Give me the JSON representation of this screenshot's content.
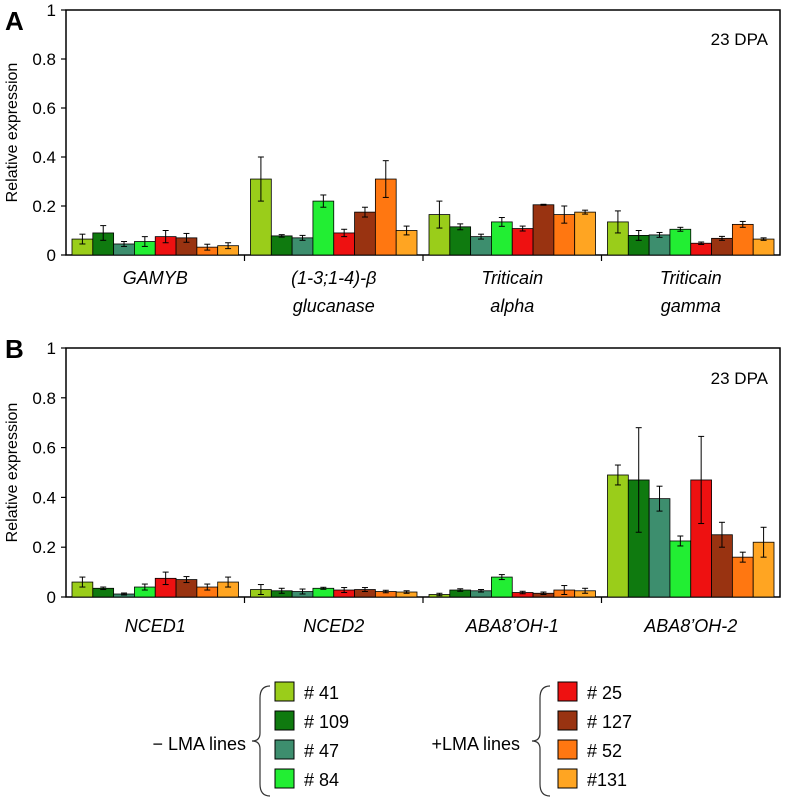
{
  "chart_data": [
    {
      "type": "bar",
      "panel": "A",
      "annotation": "23 DPA",
      "ylabel": "Relative expression",
      "ylim": [
        0,
        1
      ],
      "yticks": [
        "0",
        "0.2",
        "0.4",
        "0.6",
        "0.8",
        "1"
      ],
      "categories": [
        [
          "GAMYB"
        ],
        [
          "(1-3;1-4)-β",
          "glucanase"
        ],
        [
          "Triticain",
          "alpha"
        ],
        [
          "Triticain",
          "gamma"
        ]
      ],
      "series": [
        {
          "name": "# 41",
          "values": [
            0.065,
            0.31,
            0.165,
            0.135
          ],
          "errors": [
            0.02,
            0.09,
            0.055,
            0.045
          ]
        },
        {
          "name": "# 109",
          "values": [
            0.09,
            0.078,
            0.115,
            0.08
          ],
          "errors": [
            0.03,
            0.005,
            0.012,
            0.02
          ]
        },
        {
          "name": "# 47",
          "values": [
            0.045,
            0.07,
            0.075,
            0.082
          ],
          "errors": [
            0.01,
            0.01,
            0.01,
            0.01
          ]
        },
        {
          "name": "# 84",
          "values": [
            0.055,
            0.22,
            0.135,
            0.105
          ],
          "errors": [
            0.02,
            0.025,
            0.018,
            0.008
          ]
        },
        {
          "name": "# 25",
          "values": [
            0.075,
            0.09,
            0.108,
            0.048
          ],
          "errors": [
            0.025,
            0.015,
            0.01,
            0.005
          ]
        },
        {
          "name": "# 127",
          "values": [
            0.07,
            0.175,
            0.205,
            0.068
          ],
          "errors": [
            0.018,
            0.02,
            0.002,
            0.008
          ]
        },
        {
          "name": "# 52",
          "values": [
            0.032,
            0.31,
            0.165,
            0.125
          ],
          "errors": [
            0.012,
            0.075,
            0.035,
            0.012
          ]
        },
        {
          "name": "#131",
          "values": [
            0.038,
            0.1,
            0.175,
            0.065
          ],
          "errors": [
            0.012,
            0.018,
            0.008,
            0.005
          ]
        }
      ]
    },
    {
      "type": "bar",
      "panel": "B",
      "annotation": "23 DPA",
      "ylabel": "Relative expression",
      "ylim": [
        0,
        1
      ],
      "yticks": [
        "0",
        "0.2",
        "0.4",
        "0.6",
        "0.8",
        "1"
      ],
      "categories": [
        [
          "NCED1"
        ],
        [
          "NCED2"
        ],
        [
          "ABA8’OH-1"
        ],
        [
          "ABA8’OH-2"
        ]
      ],
      "series": [
        {
          "name": "# 41",
          "values": [
            0.06,
            0.03,
            0.01,
            0.49
          ],
          "errors": [
            0.02,
            0.02,
            0.005,
            0.04
          ]
        },
        {
          "name": "# 109",
          "values": [
            0.035,
            0.025,
            0.028,
            0.47
          ],
          "errors": [
            0.005,
            0.01,
            0.005,
            0.21
          ]
        },
        {
          "name": "# 47",
          "values": [
            0.012,
            0.022,
            0.025,
            0.395
          ],
          "errors": [
            0.004,
            0.01,
            0.005,
            0.05
          ]
        },
        {
          "name": "# 84",
          "values": [
            0.04,
            0.035,
            0.08,
            0.225
          ],
          "errors": [
            0.012,
            0.004,
            0.01,
            0.02
          ]
        },
        {
          "name": "# 25",
          "values": [
            0.075,
            0.028,
            0.018,
            0.47
          ],
          "errors": [
            0.025,
            0.01,
            0.005,
            0.175
          ]
        },
        {
          "name": "# 127",
          "values": [
            0.07,
            0.03,
            0.015,
            0.25
          ],
          "errors": [
            0.012,
            0.008,
            0.005,
            0.05
          ]
        },
        {
          "name": "# 52",
          "values": [
            0.04,
            0.022,
            0.028,
            0.16
          ],
          "errors": [
            0.012,
            0.005,
            0.018,
            0.02
          ]
        },
        {
          "name": "#131",
          "values": [
            0.06,
            0.02,
            0.025,
            0.22
          ],
          "errors": [
            0.02,
            0.005,
            0.01,
            0.06
          ]
        }
      ]
    }
  ],
  "series_colors": [
    "#9acd1a",
    "#0f7a0f",
    "#3d8e6e",
    "#22ee33",
    "#ee1111",
    "#993311",
    "#ff7711",
    "#ffa522"
  ],
  "legend": {
    "minus_label": "− LMA lines",
    "plus_label": "+LMA lines",
    "minus_items": [
      "# 41",
      "# 109",
      "# 47",
      "# 84"
    ],
    "plus_items": [
      "# 25",
      "# 127",
      "# 52",
      "#131"
    ]
  }
}
